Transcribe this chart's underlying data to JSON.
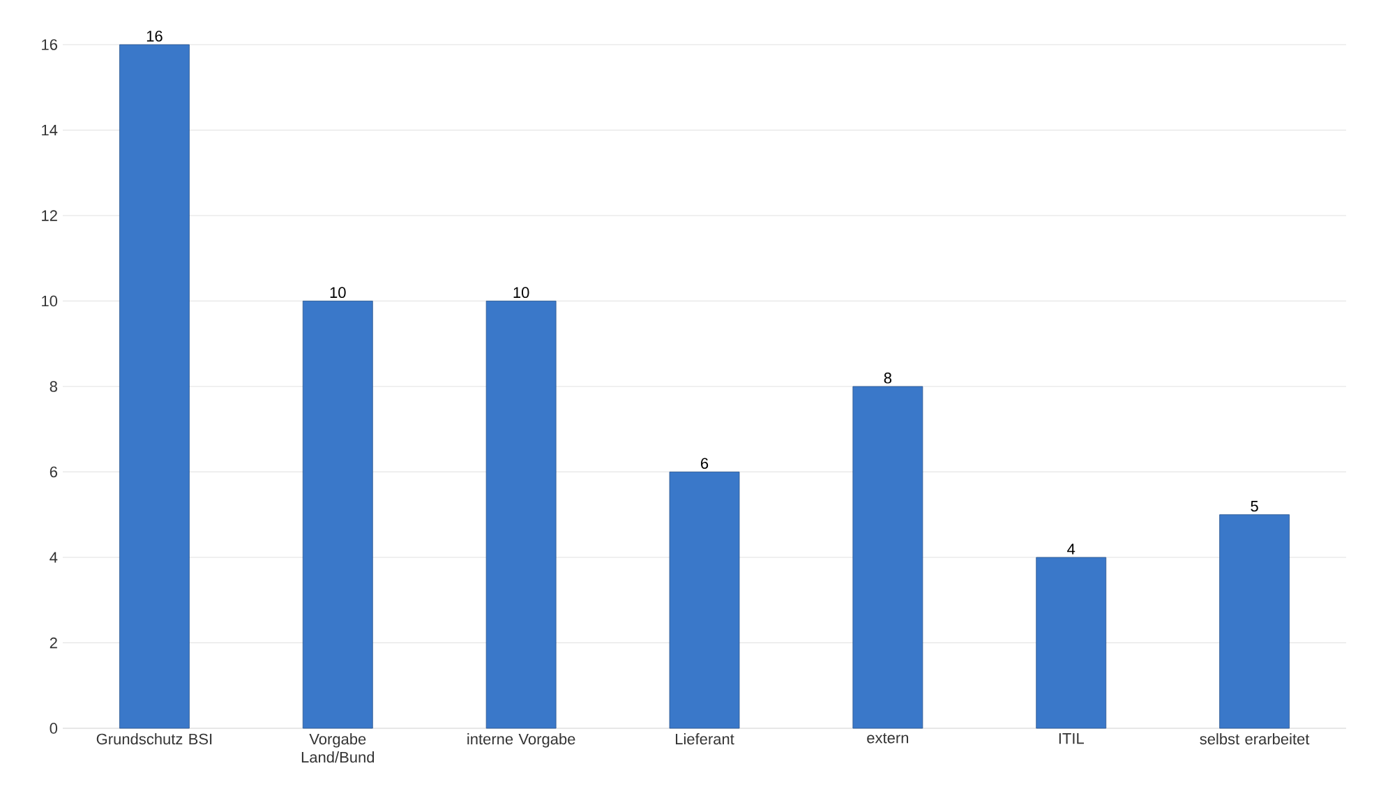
{
  "chart_data": {
    "type": "bar",
    "categories": [
      "Grundschutz BSI",
      "Vorgabe Land/Bund",
      "interne Vorgabe",
      "Lieferant",
      "extern",
      "ITIL",
      "selbst erarbeitet"
    ],
    "values": [
      16,
      10,
      10,
      6,
      8,
      4,
      5
    ],
    "color": "#3a78c9",
    "ylim": [
      0,
      16
    ],
    "yticks": [
      0,
      2,
      4,
      6,
      8,
      10,
      12,
      14,
      16
    ],
    "grid": "y",
    "data_labels": true
  }
}
